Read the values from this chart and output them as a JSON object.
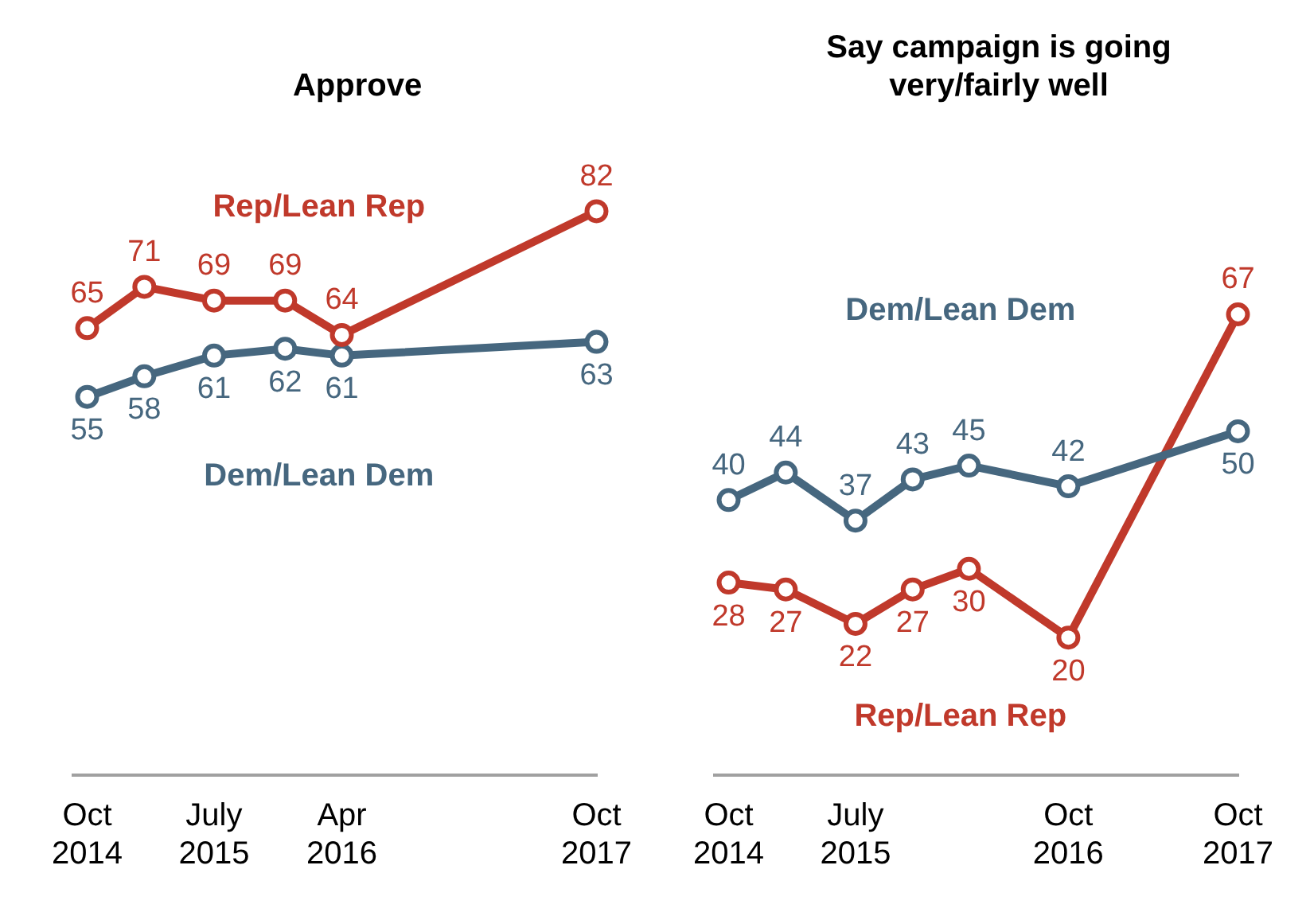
{
  "chart_data": [
    {
      "type": "line",
      "title": "Approve",
      "x": [
        "2014-10",
        "2015-02",
        "2015-07",
        "2015-12",
        "2016-04",
        "2017-10"
      ],
      "series": [
        {
          "name": "Rep/Lean Rep",
          "color": "#c0392b",
          "values": [
            65,
            71,
            69,
            69,
            64,
            82
          ]
        },
        {
          "name": "Dem/Lean Dem",
          "color": "#46677f",
          "values": [
            55,
            58,
            61,
            62,
            61,
            63
          ]
        }
      ],
      "xlim": [
        "2014-09",
        "2017-10"
      ],
      "xticks": [
        {
          "value": "2014-10",
          "label": "Oct 2014"
        },
        {
          "value": "2015-07",
          "label": "July 2015"
        },
        {
          "value": "2016-04",
          "label": "Apr 2016"
        },
        {
          "value": "2017-10",
          "label": "Oct 2017"
        }
      ],
      "data_labels": true,
      "marker": "circle",
      "grid": false,
      "legend": false,
      "tick_labels": "x"
    },
    {
      "type": "line",
      "title": "Say campaign is going very/fairly well",
      "x": [
        "2014-10",
        "2015-02",
        "2015-07",
        "2015-11",
        "2016-03",
        "2016-10",
        "2017-10"
      ],
      "series": [
        {
          "name": "Dem/Lean Dem",
          "color": "#46677f",
          "values": [
            40,
            44,
            37,
            43,
            45,
            42,
            50
          ]
        },
        {
          "name": "Rep/Lean Rep",
          "color": "#c0392b",
          "values": [
            28,
            27,
            22,
            27,
            30,
            20,
            67
          ]
        }
      ],
      "xlim": [
        "2014-09",
        "2017-10"
      ],
      "xticks": [
        {
          "value": "2014-10",
          "label": "Oct 2014"
        },
        {
          "value": "2015-07",
          "label": "July 2015"
        },
        {
          "value": "2016-10",
          "label": "Oct 2016"
        },
        {
          "value": "2017-10",
          "label": "Oct 2017"
        }
      ],
      "data_labels": true,
      "marker": "circle",
      "grid": false,
      "legend": false,
      "tick_labels": "x"
    }
  ]
}
